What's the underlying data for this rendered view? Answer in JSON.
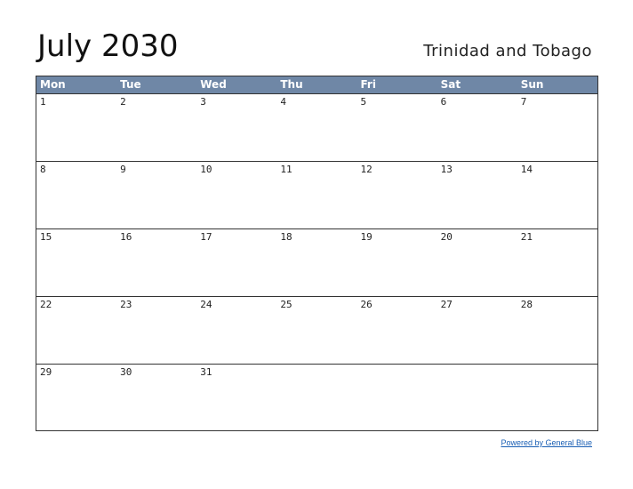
{
  "header": {
    "title": "July 2030",
    "country": "Trinidad and Tobago"
  },
  "calendar": {
    "weekdays": [
      "Mon",
      "Tue",
      "Wed",
      "Thu",
      "Fri",
      "Sat",
      "Sun"
    ],
    "weeks": [
      [
        1,
        2,
        3,
        4,
        5,
        6,
        7
      ],
      [
        8,
        9,
        10,
        11,
        12,
        13,
        14
      ],
      [
        15,
        16,
        17,
        18,
        19,
        20,
        21
      ],
      [
        22,
        23,
        24,
        25,
        26,
        27,
        28
      ],
      [
        29,
        30,
        31
      ]
    ]
  },
  "footer": {
    "link": "Powered by General Blue"
  }
}
